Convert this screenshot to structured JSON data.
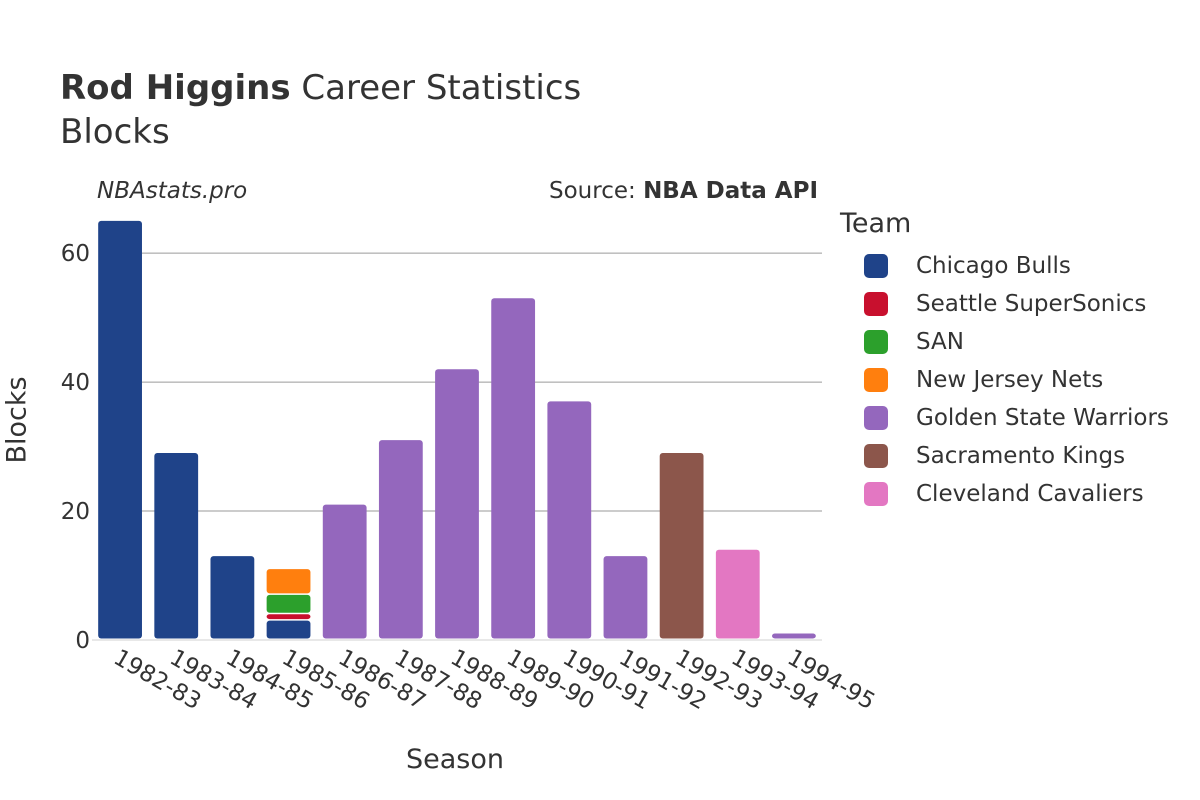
{
  "title": {
    "bold": "Rod Higgins",
    "rest": " Career Statistics",
    "subtitle": "Blocks"
  },
  "credit_left": "NBAstats.pro",
  "credit_right": {
    "prefix": "Source: ",
    "bold": "NBA Data API"
  },
  "legend_title": "Team",
  "chart_data": {
    "type": "bar",
    "stacked": true,
    "title": "Rod Higgins Career Statistics",
    "subtitle": "Blocks",
    "xlabel": "Season",
    "ylabel": "Blocks",
    "ylim": [
      0,
      67
    ],
    "yticks": [
      0,
      20,
      40,
      60
    ],
    "grid": true,
    "legend_position": "right",
    "categories": [
      "1982-83",
      "1983-84",
      "1984-85",
      "1985-86",
      "1986-87",
      "1987-88",
      "1988-89",
      "1989-90",
      "1990-91",
      "1991-92",
      "1992-93",
      "1993-94",
      "1994-95"
    ],
    "series": [
      {
        "name": "Chicago Bulls",
        "color": "#1f4389",
        "values": [
          65,
          29,
          13,
          3,
          0,
          0,
          0,
          0,
          0,
          0,
          0,
          0,
          0
        ]
      },
      {
        "name": "Seattle SuperSonics",
        "color": "#c8102e",
        "values": [
          0,
          0,
          0,
          1,
          0,
          0,
          0,
          0,
          0,
          0,
          0,
          0,
          0
        ]
      },
      {
        "name": "SAN",
        "color": "#2ca02c",
        "values": [
          0,
          0,
          0,
          3,
          0,
          0,
          0,
          0,
          0,
          0,
          0,
          0,
          0
        ]
      },
      {
        "name": "New Jersey Nets",
        "color": "#ff7f0e",
        "values": [
          0,
          0,
          0,
          4,
          0,
          0,
          0,
          0,
          0,
          0,
          0,
          0,
          0
        ]
      },
      {
        "name": "Golden State Warriors",
        "color": "#9467bd",
        "values": [
          0,
          0,
          0,
          0,
          21,
          31,
          42,
          53,
          37,
          13,
          0,
          0,
          1
        ]
      },
      {
        "name": "Sacramento Kings",
        "color": "#8c564b",
        "values": [
          0,
          0,
          0,
          0,
          0,
          0,
          0,
          0,
          0,
          0,
          29,
          0,
          0
        ]
      },
      {
        "name": "Cleveland Cavaliers",
        "color": "#e377c2",
        "values": [
          0,
          0,
          0,
          0,
          0,
          0,
          0,
          0,
          0,
          0,
          0,
          14,
          0
        ]
      }
    ]
  }
}
